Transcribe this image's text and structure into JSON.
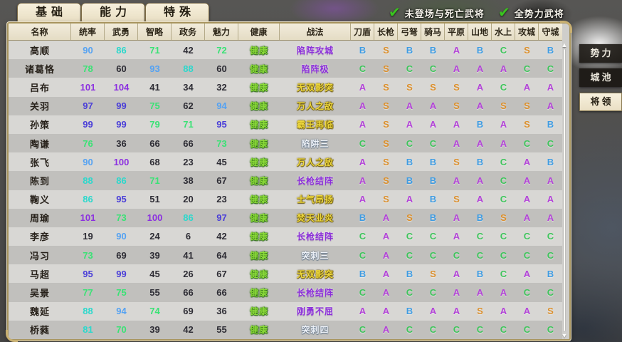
{
  "tabs": [
    {
      "label": "基础",
      "active": true
    },
    {
      "label": "能力",
      "active": false
    },
    {
      "label": "特殊",
      "active": false
    }
  ],
  "filters": [
    {
      "label": "未登场与死亡武将",
      "checked": true,
      "check_glyph": "✔"
    },
    {
      "label": "全势力武将",
      "checked": true,
      "check_glyph": "✔"
    }
  ],
  "side_tabs": [
    {
      "label": "势力",
      "active": false
    },
    {
      "label": "城池",
      "active": false
    },
    {
      "label": "将领",
      "active": true
    }
  ],
  "table": {
    "columns": [
      "名称",
      "统率",
      "武勇",
      "智略",
      "政务",
      "魅力",
      "健康",
      "战法",
      "刀盾",
      "长枪",
      "弓弩",
      "骑马",
      "平原",
      "山地",
      "水上",
      "攻城",
      "守城"
    ],
    "rows": [
      {
        "name": "高顺",
        "stats": [
          90,
          86,
          71,
          42,
          72
        ],
        "health": "健康",
        "skill": "陷阵攻城",
        "skill_color": "purple",
        "grades": [
          "B",
          "S",
          "B",
          "B",
          "A",
          "B",
          "C",
          "S",
          "B"
        ]
      },
      {
        "name": "诸葛恪",
        "stats": [
          78,
          60,
          93,
          88,
          60
        ],
        "health": "健康",
        "skill": "陷阵极",
        "skill_color": "purple",
        "grades": [
          "C",
          "S",
          "C",
          "C",
          "A",
          "A",
          "A",
          "C",
          "C"
        ]
      },
      {
        "name": "吕布",
        "stats": [
          101,
          104,
          41,
          34,
          32
        ],
        "health": "健康",
        "skill": "无双影突",
        "skill_color": "gold",
        "grades": [
          "A",
          "S",
          "S",
          "S",
          "S",
          "A",
          "C",
          "A",
          "A"
        ]
      },
      {
        "name": "关羽",
        "stats": [
          97,
          99,
          75,
          62,
          94
        ],
        "health": "健康",
        "skill": "万人之敌",
        "skill_color": "gold",
        "grades": [
          "A",
          "S",
          "A",
          "A",
          "S",
          "A",
          "S",
          "S",
          "A"
        ]
      },
      {
        "name": "孙策",
        "stats": [
          99,
          99,
          79,
          71,
          95
        ],
        "health": "健康",
        "skill": "霸王再临",
        "skill_color": "gold",
        "grades": [
          "A",
          "S",
          "A",
          "A",
          "A",
          "B",
          "A",
          "S",
          "B"
        ]
      },
      {
        "name": "陶谦",
        "stats": [
          76,
          36,
          66,
          66,
          73
        ],
        "health": "健康",
        "skill": "陷阱三",
        "skill_color": "pale",
        "grades": [
          "C",
          "S",
          "C",
          "C",
          "A",
          "A",
          "A",
          "C",
          "C"
        ]
      },
      {
        "name": "张飞",
        "stats": [
          90,
          100,
          68,
          23,
          45
        ],
        "health": "健康",
        "skill": "万人之敌",
        "skill_color": "gold",
        "grades": [
          "A",
          "S",
          "B",
          "B",
          "S",
          "B",
          "C",
          "A",
          "B"
        ]
      },
      {
        "name": "陈到",
        "stats": [
          88,
          86,
          71,
          38,
          67
        ],
        "health": "健康",
        "skill": "长枪结阵",
        "skill_color": "purple",
        "grades": [
          "A",
          "S",
          "B",
          "B",
          "A",
          "A",
          "C",
          "A",
          "A"
        ]
      },
      {
        "name": "鞠义",
        "stats": [
          86,
          95,
          51,
          20,
          23
        ],
        "health": "健康",
        "skill": "士气昂扬",
        "skill_color": "gold",
        "grades": [
          "A",
          "S",
          "A",
          "B",
          "S",
          "A",
          "C",
          "A",
          "A"
        ]
      },
      {
        "name": "周瑜",
        "stats": [
          101,
          73,
          100,
          86,
          97
        ],
        "health": "健康",
        "skill": "焚天业炎",
        "skill_color": "gold",
        "grades": [
          "B",
          "A",
          "S",
          "B",
          "A",
          "B",
          "S",
          "A",
          "A"
        ]
      },
      {
        "name": "李彦",
        "stats": [
          19,
          90,
          24,
          6,
          42
        ],
        "health": "健康",
        "skill": "长枪结阵",
        "skill_color": "purple",
        "grades": [
          "C",
          "A",
          "C",
          "C",
          "A",
          "C",
          "C",
          "C",
          "C"
        ]
      },
      {
        "name": "冯习",
        "stats": [
          73,
          69,
          39,
          41,
          64
        ],
        "health": "健康",
        "skill": "突刺三",
        "skill_color": "pale",
        "grades": [
          "C",
          "A",
          "C",
          "C",
          "C",
          "C",
          "C",
          "C",
          "C"
        ]
      },
      {
        "name": "马超",
        "stats": [
          95,
          99,
          45,
          26,
          67
        ],
        "health": "健康",
        "skill": "无双影突",
        "skill_color": "gold",
        "grades": [
          "B",
          "A",
          "B",
          "S",
          "A",
          "B",
          "C",
          "A",
          "B"
        ]
      },
      {
        "name": "吴景",
        "stats": [
          77,
          75,
          55,
          66,
          66
        ],
        "health": "健康",
        "skill": "长枪结阵",
        "skill_color": "purple",
        "grades": [
          "C",
          "A",
          "C",
          "C",
          "A",
          "A",
          "A",
          "C",
          "C"
        ]
      },
      {
        "name": "魏延",
        "stats": [
          88,
          94,
          74,
          69,
          36
        ],
        "health": "健康",
        "skill": "刚勇不屈",
        "skill_color": "purple",
        "grades": [
          "A",
          "A",
          "B",
          "A",
          "A",
          "S",
          "A",
          "A",
          "S"
        ]
      },
      {
        "name": "桥蕤",
        "stats": [
          81,
          70,
          39,
          42,
          55
        ],
        "health": "健康",
        "skill": "突刺四",
        "skill_color": "pale",
        "grades": [
          "C",
          "A",
          "C",
          "C",
          "C",
          "C",
          "C",
          "C",
          "C"
        ]
      }
    ]
  },
  "colors": {
    "grade": {
      "S": "#db8f2c",
      "A": "#b344d8",
      "B": "#3f9ce2",
      "C": "#3ec45b"
    },
    "skill": {
      "purple": "#8b2fd9",
      "gold": "#ecd63c",
      "pale": "#eef2f8"
    },
    "health": "#8ddc3a",
    "stat_tiers": {
      "t100": "#8c30e0",
      "t95": "#4a3ed8",
      "t90": "#55a2f2",
      "t80": "#2cd8cc",
      "t70": "#3ae275",
      "t0": "#2e2d35"
    }
  },
  "scrollbar": {
    "up_glyph": "▲",
    "down_glyph": "▼"
  }
}
